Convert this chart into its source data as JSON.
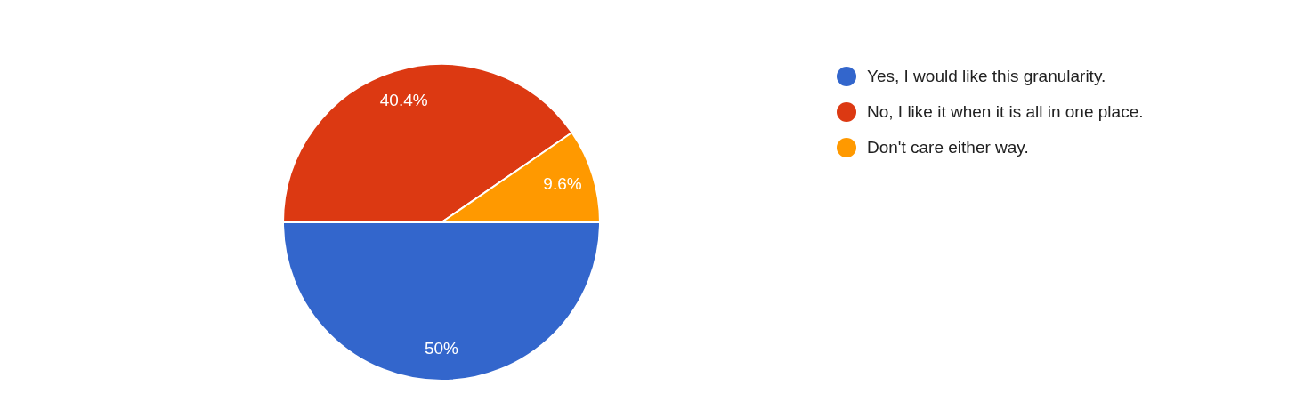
{
  "chart_data": {
    "type": "pie",
    "categories": [
      "Yes, I would like this granularity.",
      "No, I like it when it is all in one place.",
      "Don't care either way."
    ],
    "values": [
      50,
      40.4,
      9.6
    ],
    "colors": [
      "#3366cc",
      "#dc3912",
      "#ff9900"
    ],
    "value_labels": [
      "50%",
      "40.4%",
      "9.6%"
    ],
    "legend": "right"
  }
}
